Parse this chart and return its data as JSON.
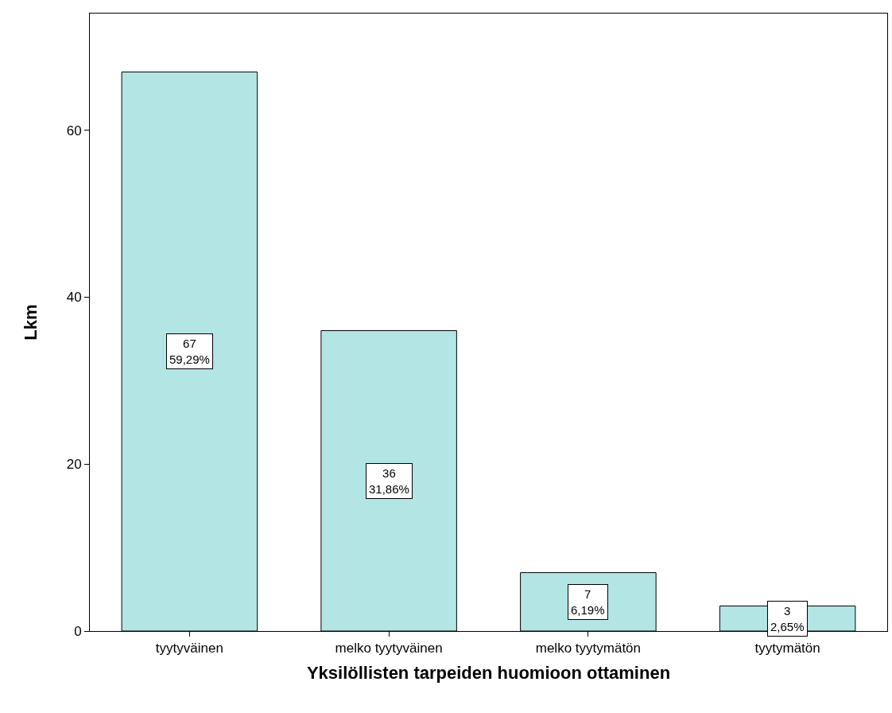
{
  "chart_data": {
    "type": "bar",
    "xlabel": "Yksilöllisten tarpeiden huomioon ottaminen",
    "ylabel": "Lkm",
    "categories": [
      "tyytyväinen",
      "melko tyytyväinen",
      "melko tyytymätön",
      "tyytymätön"
    ],
    "values": [
      67,
      36,
      7,
      3
    ],
    "value_labels": [
      "67\n59,29%",
      "36\n31,86%",
      "7\n6,19%",
      "3\n2,65%"
    ],
    "color": "#b3e5e5",
    "ylim": [
      0,
      74
    ],
    "yticks": [
      0,
      20,
      40,
      60
    ],
    "grid": false,
    "legend": false
  }
}
